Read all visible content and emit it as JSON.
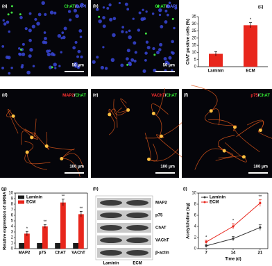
{
  "images": [
    {
      "label": "(a)",
      "stain": [
        {
          "text": "ChAT",
          "color": "#33ee33"
        },
        {
          "text": "/",
          "color": "#ffffff"
        },
        {
          "text": "DAPI",
          "color": "#5566ff"
        }
      ],
      "scale": "50 μm",
      "kind": "dapi"
    },
    {
      "label": "(b)",
      "stain": [
        {
          "text": "ChAT",
          "color": "#33ee33"
        },
        {
          "text": "/",
          "color": "#ffffff"
        },
        {
          "text": "DAPI",
          "color": "#5566ff"
        }
      ],
      "scale": "50 μm",
      "kind": "dapi"
    },
    {
      "label": "(d)",
      "stain": [
        {
          "text": "MAP2",
          "color": "#ff3030"
        },
        {
          "text": "/",
          "color": "#ffffff"
        },
        {
          "text": "ChAT",
          "color": "#33ee33"
        }
      ],
      "scale": "100 μm",
      "kind": "neuron"
    },
    {
      "label": "(e)",
      "stain": [
        {
          "text": "VAChT",
          "color": "#ff3030"
        },
        {
          "text": "/",
          "color": "#ffffff"
        },
        {
          "text": "ChAT",
          "color": "#33ee33"
        }
      ],
      "scale": "100 μm",
      "kind": "neuron"
    },
    {
      "label": "(f)",
      "stain": [
        {
          "text": "p75",
          "color": "#ff3030"
        },
        {
          "text": "/",
          "color": "#ffffff"
        },
        {
          "text": "ChAT",
          "color": "#33ee33"
        }
      ],
      "scale": "100 μm",
      "kind": "neuron"
    }
  ],
  "blot": {
    "label": "(h)",
    "proteins": [
      "MAP2",
      "p75",
      "ChAT",
      "VAChT",
      "β-actin"
    ],
    "lanes": [
      "Laminin",
      "ECM"
    ]
  },
  "chart_data": [
    {
      "type": "bar",
      "label": "(c)",
      "ylabel": "ChAT positive cells (%)",
      "categories": [
        "Laminin",
        "ECM"
      ],
      "values": [
        9,
        29
      ],
      "errors": [
        1.5,
        1.8
      ],
      "significance": [
        null,
        "*"
      ],
      "color": "#e8261c",
      "ylim": [
        0,
        35
      ],
      "yticks": [
        0,
        5,
        10,
        15,
        20,
        25,
        30,
        35
      ]
    },
    {
      "type": "grouped-bar",
      "label": "(g)",
      "ylabel": "Relative expression of mRNA",
      "categories": [
        "MAP2",
        "p75",
        "ChAT",
        "VAChT"
      ],
      "series": [
        {
          "name": "Laminin",
          "color": "#1a1a1a",
          "values": [
            1,
            1,
            1,
            1
          ],
          "errors": [
            0,
            0,
            0,
            0
          ]
        },
        {
          "name": "ECM",
          "color": "#e8261c",
          "values": [
            2.7,
            4.0,
            8.3,
            6.2
          ],
          "errors": [
            0.4,
            0.3,
            0.6,
            0.5
          ]
        }
      ],
      "significance": [
        "*",
        "**",
        "**",
        "**"
      ],
      "ylim": [
        0,
        10
      ],
      "yticks": [
        0,
        1,
        2,
        3,
        4,
        5,
        6,
        7,
        8,
        9,
        10
      ]
    },
    {
      "type": "line",
      "label": "(i)",
      "ylabel": "Acetylcholine (ng)",
      "xlabel": "Time (d)",
      "x": [
        7,
        14,
        21
      ],
      "series": [
        {
          "name": "Laminin",
          "color": "#333333",
          "values": [
            0.5,
            1.8,
            3.8
          ],
          "errors": [
            0.3,
            0.4,
            0.5
          ]
        },
        {
          "name": "ECM",
          "color": "#e8261c",
          "values": [
            1.2,
            4.0,
            8.2
          ],
          "errors": [
            0.3,
            0.5,
            0.6
          ]
        }
      ],
      "significance": [
        "*",
        "*",
        "**"
      ],
      "xlim": [
        5,
        23
      ],
      "xticks": [
        7,
        14,
        21
      ],
      "ylim": [
        0,
        10
      ],
      "yticks": [
        0,
        2,
        4,
        6,
        8,
        10
      ]
    }
  ]
}
